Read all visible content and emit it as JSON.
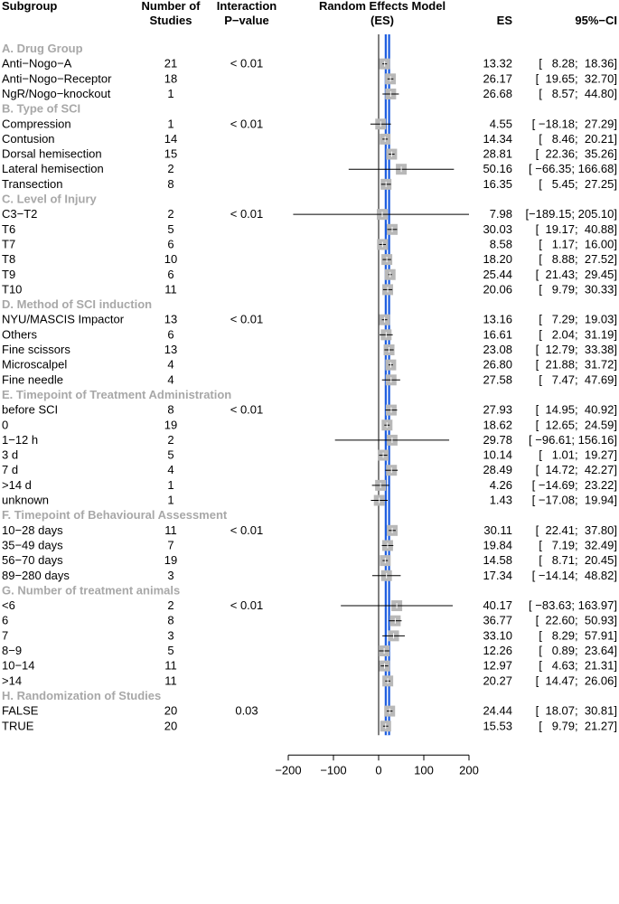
{
  "chart_data": {
    "type": "forest",
    "headers": {
      "subgroup": "Subgroup",
      "studies_line1": "Number of",
      "studies_line2": "Studies",
      "pval_line1": "Interaction",
      "pval_line2": "P−value",
      "model_line1": "Random Effects Model",
      "model_line2": "(ES)",
      "es": "ES",
      "ci": "95%−CI"
    },
    "xlim": [
      -200,
      200
    ],
    "ticks": [
      -200,
      -100,
      0,
      100,
      200
    ],
    "tick_labels": [
      "−200",
      "−100",
      "0",
      "100",
      "200"
    ],
    "reference_line": 0,
    "overall_estimate": 19.5,
    "colors": {
      "estimate_line": "#1f5fe0",
      "box": "#b8b8b8",
      "group_label": "#a8a8a8",
      "ci_line": "#000000"
    },
    "groups": [
      {
        "label": "A. Drug Group",
        "pval": "< 0.01",
        "rows": [
          {
            "label": "Anti−Nogo−A",
            "n": "21",
            "es": 13.32,
            "lo": 8.28,
            "hi": 18.36,
            "es_text": "13.32",
            "ci_text": "[   8.28;  18.36]"
          },
          {
            "label": "Anti−Nogo−Receptor",
            "n": "18",
            "es": 26.17,
            "lo": 19.65,
            "hi": 32.7,
            "es_text": "26.17",
            "ci_text": "[  19.65;  32.70]"
          },
          {
            "label": "NgR/Nogo−knockout",
            "n": "1",
            "es": 26.68,
            "lo": 8.57,
            "hi": 44.8,
            "es_text": "26.68",
            "ci_text": "[   8.57;  44.80]"
          }
        ]
      },
      {
        "label": "B. Type of SCI",
        "pval": "< 0.01",
        "rows": [
          {
            "label": "Compression",
            "n": "1",
            "es": 4.55,
            "lo": -18.18,
            "hi": 27.29,
            "es_text": "4.55",
            "ci_text": "[ −18.18;  27.29]"
          },
          {
            "label": "Contusion",
            "n": "14",
            "es": 14.34,
            "lo": 8.46,
            "hi": 20.21,
            "es_text": "14.34",
            "ci_text": "[   8.46;  20.21]"
          },
          {
            "label": "Dorsal hemisection",
            "n": "15",
            "es": 28.81,
            "lo": 22.36,
            "hi": 35.26,
            "es_text": "28.81",
            "ci_text": "[  22.36;  35.26]"
          },
          {
            "label": "Lateral hemisection",
            "n": "2",
            "es": 50.16,
            "lo": -66.35,
            "hi": 166.68,
            "es_text": "50.16",
            "ci_text": "[ −66.35; 166.68]"
          },
          {
            "label": "Transection",
            "n": "8",
            "es": 16.35,
            "lo": 5.45,
            "hi": 27.25,
            "es_text": "16.35",
            "ci_text": "[   5.45;  27.25]"
          }
        ]
      },
      {
        "label": "C. Level of Injury",
        "pval": "< 0.01",
        "rows": [
          {
            "label": "C3−T2",
            "n": "2",
            "es": 7.98,
            "lo": -189.15,
            "hi": 205.1,
            "es_text": "7.98",
            "ci_text": "[−189.15; 205.10]"
          },
          {
            "label": "T6",
            "n": "5",
            "es": 30.03,
            "lo": 19.17,
            "hi": 40.88,
            "es_text": "30.03",
            "ci_text": "[  19.17;  40.88]"
          },
          {
            "label": "T7",
            "n": "6",
            "es": 8.58,
            "lo": 1.17,
            "hi": 16.0,
            "es_text": "8.58",
            "ci_text": "[   1.17;  16.00]"
          },
          {
            "label": "T8",
            "n": "10",
            "es": 18.2,
            "lo": 8.88,
            "hi": 27.52,
            "es_text": "18.20",
            "ci_text": "[   8.88;  27.52]"
          },
          {
            "label": "T9",
            "n": "6",
            "es": 25.44,
            "lo": 21.43,
            "hi": 29.45,
            "es_text": "25.44",
            "ci_text": "[  21.43;  29.45]"
          },
          {
            "label": "T10",
            "n": "11",
            "es": 20.06,
            "lo": 9.79,
            "hi": 30.33,
            "es_text": "20.06",
            "ci_text": "[   9.79;  30.33]"
          }
        ]
      },
      {
        "label": "D. Method of SCI induction",
        "pval": "< 0.01",
        "rows": [
          {
            "label": "NYU/MASCIS Impactor",
            "n": "13",
            "es": 13.16,
            "lo": 7.29,
            "hi": 19.03,
            "es_text": "13.16",
            "ci_text": "[   7.29;  19.03]"
          },
          {
            "label": "Others",
            "n": "6",
            "es": 16.61,
            "lo": 2.04,
            "hi": 31.19,
            "es_text": "16.61",
            "ci_text": "[   2.04;  31.19]"
          },
          {
            "label": "Fine scissors",
            "n": "13",
            "es": 23.08,
            "lo": 12.79,
            "hi": 33.38,
            "es_text": "23.08",
            "ci_text": "[  12.79;  33.38]"
          },
          {
            "label": "Microscalpel",
            "n": "4",
            "es": 26.8,
            "lo": 21.88,
            "hi": 31.72,
            "es_text": "26.80",
            "ci_text": "[  21.88;  31.72]"
          },
          {
            "label": "Fine needle",
            "n": "4",
            "es": 27.58,
            "lo": 7.47,
            "hi": 47.69,
            "es_text": "27.58",
            "ci_text": "[   7.47;  47.69]"
          }
        ]
      },
      {
        "label": "E. Timepoint of Treatment Administration",
        "pval": "< 0.01",
        "rows": [
          {
            "label": "before SCI",
            "n": "8",
            "es": 27.93,
            "lo": 14.95,
            "hi": 40.92,
            "es_text": "27.93",
            "ci_text": "[  14.95;  40.92]"
          },
          {
            "label": "0",
            "n": "19",
            "es": 18.62,
            "lo": 12.65,
            "hi": 24.59,
            "es_text": "18.62",
            "ci_text": "[  12.65;  24.59]"
          },
          {
            "label": "1−12 h",
            "n": "2",
            "es": 29.78,
            "lo": -96.61,
            "hi": 156.16,
            "es_text": "29.78",
            "ci_text": "[ −96.61; 156.16]"
          },
          {
            "label": "3 d",
            "n": "5",
            "es": 10.14,
            "lo": 1.01,
            "hi": 19.27,
            "es_text": "10.14",
            "ci_text": "[   1.01;  19.27]"
          },
          {
            "label": "7 d",
            "n": "4",
            "es": 28.49,
            "lo": 14.72,
            "hi": 42.27,
            "es_text": "28.49",
            "ci_text": "[  14.72;  42.27]"
          },
          {
            "label": ">14 d",
            "n": "1",
            "es": 4.26,
            "lo": -14.69,
            "hi": 23.22,
            "es_text": "4.26",
            "ci_text": "[ −14.69;  23.22]"
          },
          {
            "label": "unknown",
            "n": "1",
            "es": 1.43,
            "lo": -17.08,
            "hi": 19.94,
            "es_text": "1.43",
            "ci_text": "[ −17.08;  19.94]"
          }
        ]
      },
      {
        "label": "F. Timepoint of Behavioural  Assessment",
        "pval": "< 0.01",
        "rows": [
          {
            "label": "10−28 days",
            "n": "11",
            "es": 30.11,
            "lo": 22.41,
            "hi": 37.8,
            "es_text": "30.11",
            "ci_text": "[  22.41;  37.80]"
          },
          {
            "label": "35−49 days",
            "n": "7",
            "es": 19.84,
            "lo": 7.19,
            "hi": 32.49,
            "es_text": "19.84",
            "ci_text": "[   7.19;  32.49]"
          },
          {
            "label": "56−70 days",
            "n": "19",
            "es": 14.58,
            "lo": 8.71,
            "hi": 20.45,
            "es_text": "14.58",
            "ci_text": "[   8.71;  20.45]"
          },
          {
            "label": "89−280 days",
            "n": "3",
            "es": 17.34,
            "lo": -14.14,
            "hi": 48.82,
            "es_text": "17.34",
            "ci_text": "[ −14.14;  48.82]"
          }
        ]
      },
      {
        "label": "G. Number of treatment animals",
        "pval": "< 0.01",
        "rows": [
          {
            "label": "<6",
            "n": "2",
            "es": 40.17,
            "lo": -83.63,
            "hi": 163.97,
            "es_text": "40.17",
            "ci_text": "[ −83.63; 163.97]"
          },
          {
            "label": "6",
            "n": "8",
            "es": 36.77,
            "lo": 22.6,
            "hi": 50.93,
            "es_text": "36.77",
            "ci_text": "[  22.60;  50.93]"
          },
          {
            "label": "7",
            "n": "3",
            "es": 33.1,
            "lo": 8.29,
            "hi": 57.91,
            "es_text": "33.10",
            "ci_text": "[   8.29;  57.91]"
          },
          {
            "label": "8−9",
            "n": "5",
            "es": 12.26,
            "lo": 0.89,
            "hi": 23.64,
            "es_text": "12.26",
            "ci_text": "[   0.89;  23.64]"
          },
          {
            "label": "10−14",
            "n": "11",
            "es": 12.97,
            "lo": 4.63,
            "hi": 21.31,
            "es_text": "12.97",
            "ci_text": "[   4.63;  21.31]"
          },
          {
            "label": ">14",
            "n": "11",
            "es": 20.27,
            "lo": 14.47,
            "hi": 26.06,
            "es_text": "20.27",
            "ci_text": "[  14.47;  26.06]"
          }
        ]
      },
      {
        "label": "H. Randomization of Studies",
        "pval": "0.03",
        "rows": [
          {
            "label": "FALSE",
            "n": "20",
            "es": 24.44,
            "lo": 18.07,
            "hi": 30.81,
            "es_text": "24.44",
            "ci_text": "[  18.07;  30.81]"
          },
          {
            "label": "TRUE",
            "n": "20",
            "es": 15.53,
            "lo": 9.79,
            "hi": 21.27,
            "es_text": "15.53",
            "ci_text": "[   9.79;  21.27]"
          }
        ]
      }
    ]
  }
}
